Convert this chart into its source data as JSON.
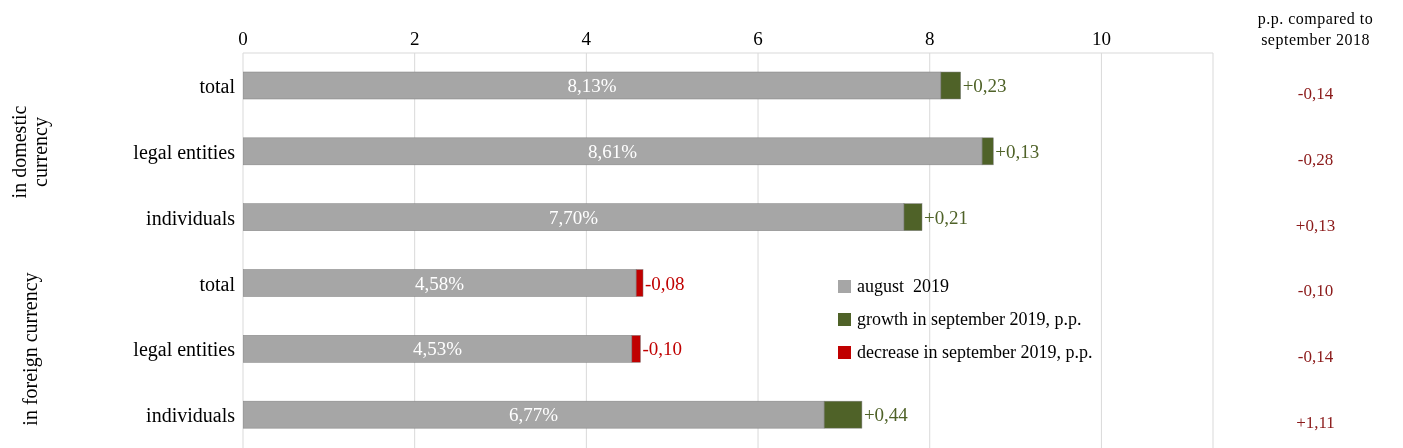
{
  "chart_data": {
    "type": "bar",
    "orientation": "horizontal",
    "stacked": true,
    "categories": [
      "total",
      "legal entities",
      "individuals",
      "total",
      "legal entities",
      "individuals"
    ],
    "series": [
      {
        "name": "august  2019",
        "color": "#a6a6a6",
        "values": [
          8.13,
          8.61,
          7.7,
          4.58,
          4.53,
          6.77
        ],
        "value_labels": [
          "8,13%",
          "8,61%",
          "7,70%",
          "4,58%",
          "4,53%",
          "6,77%"
        ]
      },
      {
        "name": "growth in september 2019, p.p.",
        "color": "#4f6228",
        "values": [
          0.23,
          0.13,
          0.21,
          null,
          null,
          0.44
        ],
        "value_labels": [
          "+0,23",
          "+0,13",
          "+0,21",
          null,
          null,
          "+0,44"
        ]
      },
      {
        "name": "decrease in september 2019, p.p.",
        "color": "#c00000",
        "base": [
          null,
          null,
          null,
          4.66,
          4.63,
          null
        ],
        "values": [
          null,
          null,
          null,
          -0.08,
          -0.1,
          null
        ],
        "value_labels": [
          null,
          null,
          null,
          "-0,08",
          "-0,10",
          null
        ]
      }
    ],
    "xlim": [
      0,
      11.3
    ],
    "xticks": [
      0,
      2,
      4,
      6,
      8,
      10
    ],
    "grid": "x",
    "legend": "right",
    "annotations": [
      "in domestic currency",
      "in foreign currency",
      "p.p. compared to september 2018",
      "-0,14",
      "-0,28",
      "+0,13",
      "-0,10",
      "-0,14",
      "+1,11"
    ]
  }
}
